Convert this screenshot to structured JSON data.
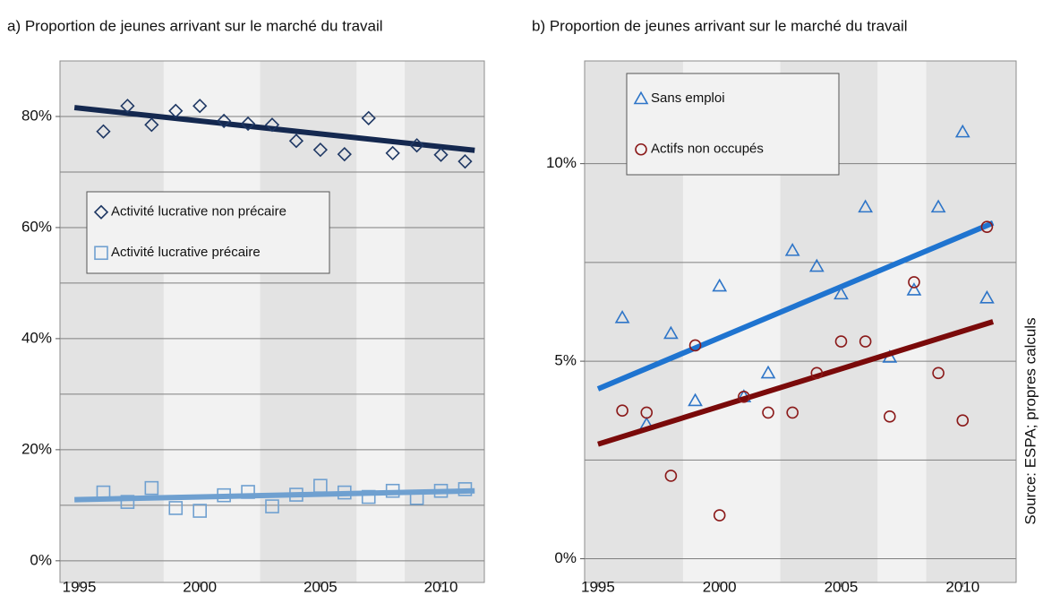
{
  "chart_data": [
    {
      "type": "scatter",
      "title": "a)  Proportion de jeunes arrivant sur le marché du travail",
      "x": [
        1996,
        1997,
        1998,
        1999,
        2000,
        2001,
        2002,
        2003,
        2004,
        2005,
        2006,
        2007,
        2008,
        2009,
        2010,
        2011
      ],
      "series": [
        {
          "name": "Activité lucrative non précaire",
          "color": "#1f3864",
          "marker": "diamond",
          "values": [
            77.3,
            81.9,
            78.5,
            81.0,
            81.9,
            79.2,
            78.7,
            78.5,
            75.6,
            74.0,
            73.2,
            79.7,
            73.4,
            74.8,
            73.1,
            71.9
          ],
          "trend": {
            "color": "#14284f",
            "x": [
              1994.8,
              2011.4
            ],
            "values": [
              81.6,
              73.9
            ]
          }
        },
        {
          "name": "Activité lucrative précaire",
          "color": "#6fa0d0",
          "marker": "square",
          "values": [
            12.3,
            10.6,
            13.1,
            9.5,
            9.0,
            11.8,
            12.4,
            9.8,
            11.9,
            13.5,
            12.3,
            11.5,
            12.6,
            11.3,
            12.6,
            12.9
          ],
          "trend": {
            "color": "#6fa0d0",
            "x": [
              1994.8,
              2011.4
            ],
            "values": [
              11.0,
              12.6
            ]
          }
        }
      ],
      "xlim": [
        1994.2,
        2011.8
      ],
      "xticks": [
        1995,
        2000,
        2005,
        2010
      ],
      "ylim": [
        -3.9,
        90
      ],
      "yticks": [
        {
          "value": 0,
          "label": "0%"
        },
        {
          "value": 20,
          "label": "20%"
        },
        {
          "value": 40,
          "label": "40%"
        },
        {
          "value": 60,
          "label": "60%"
        },
        {
          "value": 80,
          "label": "80%"
        }
      ],
      "ygrid": [
        0,
        10,
        20,
        30,
        40,
        50,
        60,
        70,
        80
      ],
      "bands": [
        {
          "from": 1994.2,
          "to": 1998.5
        },
        {
          "from": 2002.5,
          "to": 2006.5
        },
        {
          "from": 2008.5,
          "to": 2011.8
        }
      ],
      "legend": "center left"
    },
    {
      "type": "scatter",
      "title": "b)  Proportion de jeunes arrivant sur le marché du travail",
      "x": [
        1996,
        1997,
        1998,
        1999,
        2000,
        2001,
        2002,
        2003,
        2004,
        2005,
        2006,
        2007,
        2008,
        2009,
        2010,
        2011
      ],
      "series": [
        {
          "name": "Sans emploi",
          "color": "#2e75c8",
          "marker": "triangle",
          "values": [
            6.1,
            3.4,
            5.7,
            4.0,
            6.9,
            4.1,
            4.7,
            7.8,
            7.4,
            6.7,
            8.9,
            5.1,
            6.8,
            8.9,
            10.8,
            6.6
          ],
          "trend": {
            "color": "#1f74d0",
            "x": [
              1995,
              2011.25
            ],
            "values": [
              4.3,
              8.5
            ]
          }
        },
        {
          "name": "Actifs non occupés",
          "color": "#8b1a1a",
          "marker": "circle",
          "values": [
            3.75,
            3.7,
            2.1,
            5.4,
            1.1,
            4.1,
            3.7,
            3.7,
            4.7,
            5.5,
            5.5,
            3.6,
            7.0,
            4.7,
            3.5,
            8.4
          ],
          "trend": {
            "color": "#7a0a0a",
            "x": [
              1995,
              2011.25
            ],
            "values": [
              2.9,
              6.0
            ]
          }
        }
      ],
      "xlim": [
        1994.45,
        2012.2
      ],
      "xticks": [
        1995,
        2000,
        2005,
        2010
      ],
      "ylim": [
        -0.6,
        12.6
      ],
      "yticks": [
        {
          "value": 0,
          "label": "0%"
        },
        {
          "value": 5,
          "label": "5%"
        },
        {
          "value": 10,
          "label": "10%"
        }
      ],
      "ygrid": [
        0,
        2.5,
        5,
        7.5,
        10
      ],
      "bands": [
        {
          "from": 1994.45,
          "to": 1998.5
        },
        {
          "from": 2002.5,
          "to": 2006.5
        },
        {
          "from": 2008.5,
          "to": 2012.2
        }
      ],
      "legend": "upper left"
    }
  ],
  "source": "Source: ESPA; propres calculs"
}
